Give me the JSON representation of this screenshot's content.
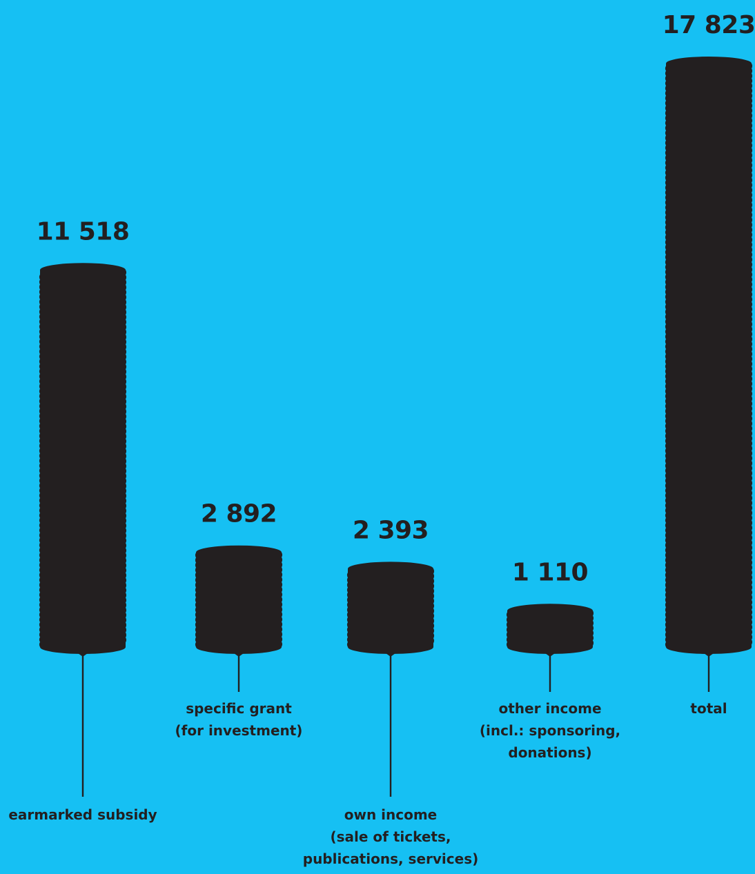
{
  "chart_data": {
    "type": "bar",
    "title": "",
    "xlabel": "",
    "ylabel": "",
    "ylim": [
      0,
      17823
    ],
    "categories": [
      "earmarked subsidy",
      "specific grant (for investment)",
      "own income (sale of tickets, publications, services)",
      "other income (incl.: sponsoring, donations)",
      "total"
    ],
    "category_lines": [
      [
        "earmarked subsidy"
      ],
      [
        "specific grant",
        "(for investment)"
      ],
      [
        "own income",
        "(sale of tickets,",
        "publications, services)"
      ],
      [
        "other income",
        "(incl.: sponsoring,",
        "donations)"
      ],
      [
        "total"
      ]
    ],
    "values": [
      11518,
      2892,
      2393,
      1110,
      17823
    ],
    "value_labels": [
      "11 518",
      "2 892",
      "2 393",
      "1 110",
      "17 823"
    ],
    "grid": false,
    "colors": {
      "background": "#16c0f3",
      "bar": "#231f20",
      "text": "#231f20"
    }
  }
}
